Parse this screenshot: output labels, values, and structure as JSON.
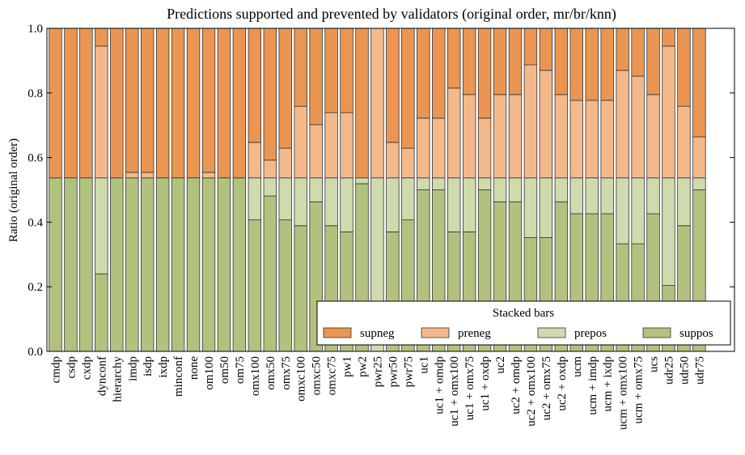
{
  "chart_data": {
    "type": "stacked_bar",
    "title": "Predictions supported and prevented by validators (original order, mr/br/knn)",
    "y_label": "Ratio (original order)",
    "legend_title": "Stacked bars",
    "legend_position": "lower right",
    "categories": [
      "cmdp",
      "csdp",
      "cxdp",
      "dynconf",
      "hierarchy",
      "imdp",
      "isdp",
      "ixdp",
      "minconf",
      "none",
      "om100",
      "om50",
      "om75",
      "omx100",
      "omx50",
      "omx75",
      "omxc100",
      "omxc50",
      "omxc75",
      "pw1",
      "pw2",
      "pwr25",
      "pwr50",
      "pwr75",
      "uc1",
      "uc1 + omdp",
      "uc1 + omx100",
      "uc1 + omx75",
      "uc1 + oxdp",
      "uc2",
      "uc2 + omdp",
      "uc2 + omx100",
      "uc2 + omx75",
      "uc2 + oxdp",
      "ucm",
      "ucm + imdp",
      "ucm + ixdp",
      "ucm + omx100",
      "ucm + omx75",
      "ucs",
      "udr25",
      "udr50",
      "udr75"
    ],
    "series": [
      {
        "name": "suppos",
        "color": "#b3c17f",
        "values": [
          0.537,
          0.537,
          0.537,
          0.24,
          0.537,
          0.537,
          0.537,
          0.537,
          0.537,
          0.537,
          0.537,
          0.537,
          0.537,
          0.407,
          0.481,
          0.407,
          0.389,
          0.463,
          0.389,
          0.37,
          0.519,
          0,
          0.37,
          0.407,
          0.5,
          0.5,
          0.37,
          0.37,
          0.5,
          0.463,
          0.463,
          0.352,
          0.352,
          0.463,
          0.426,
          0.426,
          0.426,
          0.333,
          0.333,
          0.426,
          0.204,
          0.389,
          0.5
        ]
      },
      {
        "name": "prepos",
        "color": "#cfdaaf",
        "values": [
          0,
          0,
          0,
          0.297,
          0,
          0,
          0,
          0,
          0,
          0,
          0,
          0,
          0,
          0.13,
          0.056,
          0.13,
          0.148,
          0.074,
          0.148,
          0.167,
          0.018,
          0.537,
          0.167,
          0.13,
          0.037,
          0.037,
          0.167,
          0.167,
          0.037,
          0.074,
          0.074,
          0.185,
          0.185,
          0.074,
          0.111,
          0.111,
          0.111,
          0.204,
          0.204,
          0.111,
          0.333,
          0.148,
          0.037
        ]
      },
      {
        "name": "preneg",
        "color": "#f4b98a",
        "values": [
          0,
          0,
          0,
          0.408,
          0,
          0.017,
          0.017,
          0,
          0,
          0,
          0.017,
          0,
          0,
          0.11,
          0.055,
          0.092,
          0.222,
          0.165,
          0.202,
          0.202,
          0,
          0.463,
          0.11,
          0.092,
          0.185,
          0.185,
          0.278,
          0.258,
          0.185,
          0.258,
          0.258,
          0.35,
          0.333,
          0.258,
          0.24,
          0.24,
          0.24,
          0.333,
          0.315,
          0.258,
          0.408,
          0.222,
          0.127
        ]
      },
      {
        "name": "supneg",
        "color": "#ea9652",
        "values": [
          0.463,
          0.463,
          0.463,
          0.055,
          0.463,
          0.446,
          0.446,
          0.463,
          0.463,
          0.463,
          0.446,
          0.463,
          0.463,
          0.353,
          0.408,
          0.371,
          0.241,
          0.298,
          0.261,
          0.261,
          0.463,
          0,
          0.353,
          0.371,
          0.278,
          0.278,
          0.185,
          0.205,
          0.278,
          0.205,
          0.205,
          0.113,
          0.13,
          0.205,
          0.223,
          0.223,
          0.223,
          0.13,
          0.148,
          0.205,
          0.055,
          0.241,
          0.336
        ]
      }
    ],
    "ylim": [
      0,
      1
    ],
    "yticks": [
      {
        "value": 0,
        "label": "0.0"
      },
      0.2,
      0.4,
      0.6,
      0.8,
      {
        "value": 1,
        "label": "1.0"
      }
    ]
  }
}
